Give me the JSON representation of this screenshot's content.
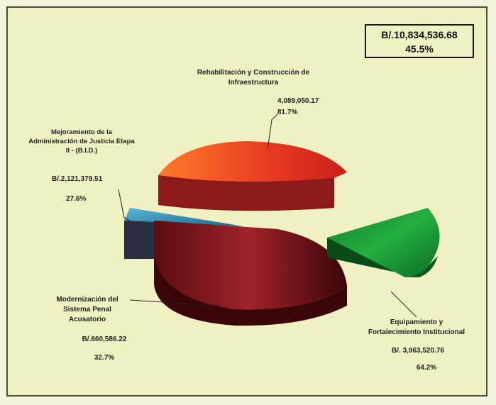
{
  "total_box": {
    "amount": "B/.10,834,536.68",
    "percent": "45.5%"
  },
  "chart_data": {
    "type": "pie",
    "style": "3d-exploded",
    "slices": [
      {
        "label": "Rehabilitación y Construcción de Infraestructura",
        "amount": "4,089,050.17",
        "percent": "81.7%",
        "color": "#e8442a"
      },
      {
        "label": "Equipamiento y Fortalecimiento Institucional",
        "amount": "B/. 3,963,520.76",
        "percent": "64.2%",
        "color": "#1c9c3c"
      },
      {
        "label": "Modernización del Sistema Penal Acusatorio",
        "amount": "B/.660,586.22",
        "percent": "32.7%",
        "color": "#8a1a1e"
      },
      {
        "label": "Mejoramiento de la Administración de Justicia Etapa II - (B.I.D.)",
        "amount": "B/.2,121,379.51",
        "percent": "27.6%",
        "color": "#3a8fb0"
      }
    ],
    "label_lines": {
      "infra": [
        "Rehabilitación y Construcción de",
        "Infraestructura"
      ],
      "equip": [
        "Equipamiento y",
        "Fortalecimiento Institucional"
      ],
      "moder": [
        "Modernización del",
        "Sistema Penal",
        "Acusatorio"
      ],
      "bid": [
        "Mejoramiento de la",
        "Administración de Justicia Etapa",
        "II - (B.I.D.)"
      ]
    }
  }
}
